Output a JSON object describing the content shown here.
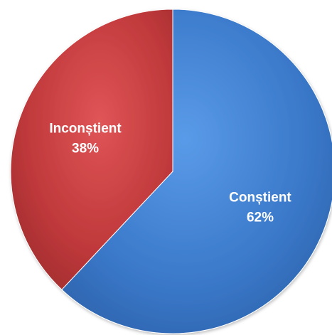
{
  "chart_data": {
    "type": "pie",
    "slices": [
      {
        "label": "Conștient",
        "value": 62,
        "value_label": "62%",
        "color": "#3a78c9"
      },
      {
        "label": "Inconștient",
        "value": 38,
        "value_label": "38%",
        "color": "#c0393b"
      }
    ],
    "start_angle": "12 o'clock",
    "direction": "clockwise",
    "legend": "none",
    "labels": "inside slices"
  }
}
